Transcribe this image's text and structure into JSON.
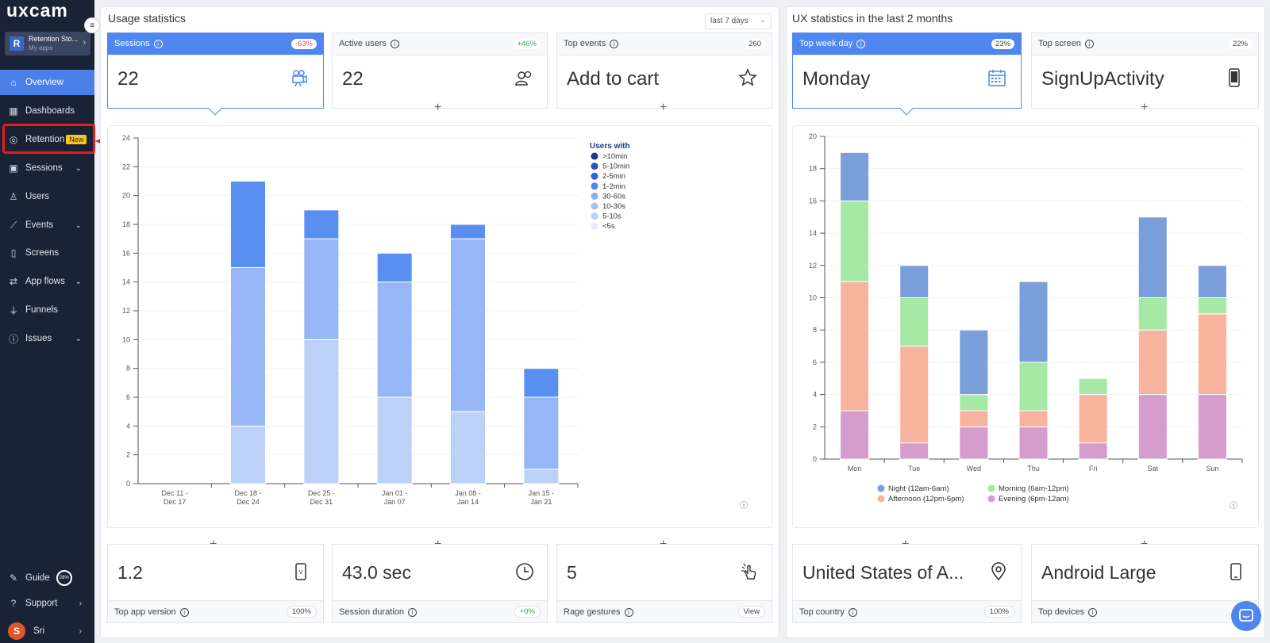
{
  "sidebar": {
    "logo": "uxcam",
    "app": {
      "name": "Retention Sto...",
      "sub": "My apps",
      "initial": "R"
    },
    "items": [
      {
        "label": "Overview",
        "icon": "home-icon"
      },
      {
        "label": "Dashboards",
        "icon": "dashboard-icon"
      },
      {
        "label": "Retention",
        "icon": "retention-icon",
        "badge": "New"
      },
      {
        "label": "Sessions",
        "icon": "sessions-icon"
      },
      {
        "label": "Users",
        "icon": "users-icon"
      },
      {
        "label": "Events",
        "icon": "events-icon"
      },
      {
        "label": "Screens",
        "icon": "screens-icon"
      },
      {
        "label": "App flows",
        "icon": "app-flows-icon"
      },
      {
        "label": "Funnels",
        "icon": "funnels-icon"
      },
      {
        "label": "Issues",
        "icon": "issues-icon"
      }
    ],
    "guide": {
      "label": "Guide",
      "percent": "28%"
    },
    "support": "Support",
    "user": {
      "name": "Sri",
      "initial": "S"
    }
  },
  "usage": {
    "title": "Usage statistics",
    "range": "last 7 days",
    "cards": [
      {
        "label": "Sessions",
        "badge": "-63%",
        "value": "22"
      },
      {
        "label": "Active users",
        "badge": "+46%",
        "value": "22"
      },
      {
        "label": "Top events",
        "badge": "260",
        "value": "Add to cart"
      }
    ],
    "bottom": [
      {
        "label": "Top app version",
        "badge": "100%",
        "value": "1.2"
      },
      {
        "label": "Session duration",
        "badge": "+0%",
        "value": "43.0 sec"
      },
      {
        "label": "Rage gestures",
        "badge": "View",
        "value": "5"
      }
    ]
  },
  "ux": {
    "title": "UX statistics in the last 2 months",
    "cards": [
      {
        "label": "Top week day",
        "badge": "23%",
        "value": "Monday"
      },
      {
        "label": "Top screen",
        "badge": "22%",
        "value": "SignUpActivity"
      }
    ],
    "bottom": [
      {
        "label": "Top country",
        "badge": "100%",
        "value": "United States of A..."
      },
      {
        "label": "Top devices",
        "badge": "",
        "value": "Android Large"
      }
    ]
  },
  "chart_data": [
    {
      "type": "bar",
      "title": "Sessions",
      "legend_title": "Users with",
      "categories": [
        "Dec 11 - Dec 17",
        "Dec 18 - Dec 24",
        "Dec 25 - Dec 31",
        "Jan 01 - Jan 07",
        "Jan 08 - Jan 14",
        "Jan 15 - Jan 21"
      ],
      "ylim": [
        0,
        24
      ],
      "yticks": [
        0,
        2,
        4,
        6,
        8,
        10,
        12,
        14,
        16,
        18,
        20,
        22,
        24
      ],
      "legend": [
        ">10min",
        "5-10min",
        "2-5min",
        "1-2min",
        "30-60s",
        "10-30s",
        "5-10s",
        "<5s"
      ],
      "colors": [
        "#1c3a8c",
        "#2453c9",
        "#2e63e0",
        "#4f86ef",
        "#8fb1f4",
        "#a4c0f6",
        "#bcd1f8",
        "#e3ebfb"
      ],
      "series": [
        {
          "name": "5-10s",
          "values": [
            0,
            4,
            10,
            6,
            5,
            1
          ]
        },
        {
          "name": "10-30s",
          "values": [
            0,
            11,
            7,
            8,
            12,
            5
          ]
        },
        {
          "name": "1-2min",
          "values": [
            0,
            6,
            2,
            2,
            1,
            2
          ]
        }
      ],
      "series_colors": [
        "#bcd1f8",
        "#97b6f5",
        "#5a8ff2"
      ]
    },
    {
      "type": "bar",
      "title": "Top week day",
      "categories": [
        "Mon",
        "Tue",
        "Wed",
        "Thu",
        "Fri",
        "Sat",
        "Sun"
      ],
      "ylim": [
        0,
        20
      ],
      "yticks": [
        0,
        2,
        4,
        6,
        8,
        10,
        12,
        14,
        16,
        18,
        20
      ],
      "series": [
        {
          "name": "Evening (6pm-12am)",
          "values": [
            3,
            1,
            2,
            2,
            1,
            4,
            4
          ]
        },
        {
          "name": "Afternoon (12pm-6pm)",
          "values": [
            8,
            6,
            1,
            1,
            3,
            4,
            5
          ]
        },
        {
          "name": "Morning (6am-12pm)",
          "values": [
            5,
            3,
            1,
            3,
            1,
            2,
            1
          ]
        },
        {
          "name": "Night (12am-6am)",
          "values": [
            3,
            2,
            4,
            5,
            0,
            5,
            2
          ]
        }
      ],
      "series_colors": [
        "#d69ccd",
        "#f8b39e",
        "#a6e8a6",
        "#7a9fdb"
      ],
      "legend": [
        "Night (12am-6am)",
        "Morning (6am-12pm)",
        "Afternoon (12pm-6pm)",
        "Evening (6pm-12am)"
      ],
      "legend_colors": [
        "#7a9fdb",
        "#a6e8a6",
        "#f8b39e",
        "#d69ccd"
      ]
    }
  ]
}
